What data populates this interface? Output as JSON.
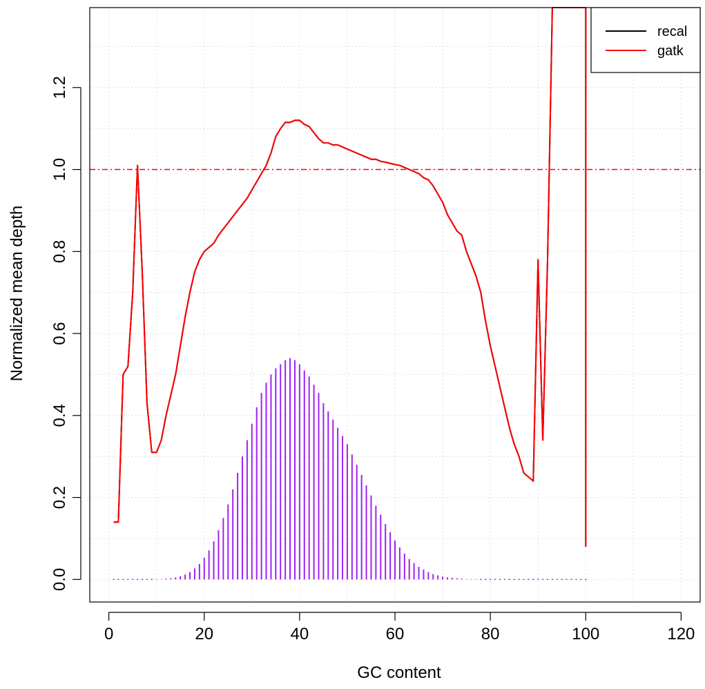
{
  "chart_data": {
    "type": "line",
    "xlabel": "GC content",
    "ylabel": "Normalized mean depth",
    "xlim": [
      -4,
      124
    ],
    "ylim": [
      -0.055,
      1.395
    ],
    "x_ticks": [
      0,
      20,
      40,
      60,
      80,
      100,
      120
    ],
    "y_ticks": [
      0.0,
      0.2,
      0.4,
      0.6,
      0.8,
      1.0,
      1.2
    ],
    "x_tick_labels": [
      "0",
      "20",
      "40",
      "60",
      "80",
      "100",
      "120"
    ],
    "y_tick_labels": [
      "0.0",
      "0.2",
      "0.4",
      "0.6",
      "0.8",
      "1.0",
      "1.2"
    ],
    "grid": true,
    "reference_line": {
      "y": 1.0,
      "color": "#ff0000",
      "style": "dashed"
    },
    "legend": {
      "position": "top-right",
      "entries": [
        {
          "label": "recal",
          "color": "#000000"
        },
        {
          "label": "gatk",
          "color": "#ff0000"
        }
      ]
    },
    "series": [
      {
        "name": "recal",
        "color": "#000000",
        "x": [
          1,
          2,
          3,
          4,
          5,
          6,
          7,
          8,
          9,
          10,
          11,
          12,
          13,
          14,
          15,
          16,
          17,
          18,
          19,
          20,
          21,
          22,
          23,
          24,
          25,
          26,
          27,
          28,
          29,
          30,
          31,
          32,
          33,
          34,
          35,
          36,
          37,
          38,
          39,
          40,
          41,
          42,
          43,
          44,
          45,
          46,
          47,
          48,
          49,
          50,
          51,
          52,
          53,
          54,
          55,
          56,
          57,
          58,
          59,
          60,
          61,
          62,
          63,
          64,
          65,
          66,
          67,
          68,
          69,
          70,
          71,
          72,
          73,
          74,
          75,
          76,
          77,
          78,
          79,
          80,
          81,
          82,
          83,
          84,
          85,
          86,
          87,
          88,
          89,
          90,
          91,
          92,
          93,
          100,
          100
        ],
        "y": [
          0.14,
          0.14,
          0.5,
          0.52,
          0.7,
          1.01,
          0.75,
          0.43,
          0.31,
          0.31,
          0.34,
          0.4,
          0.45,
          0.5,
          0.57,
          0.64,
          0.7,
          0.75,
          0.78,
          0.8,
          0.81,
          0.82,
          0.84,
          0.855,
          0.87,
          0.885,
          0.9,
          0.915,
          0.93,
          0.95,
          0.97,
          0.99,
          1.01,
          1.04,
          1.08,
          1.1,
          1.115,
          1.115,
          1.12,
          1.12,
          1.11,
          1.105,
          1.09,
          1.075,
          1.065,
          1.065,
          1.06,
          1.06,
          1.055,
          1.05,
          1.045,
          1.04,
          1.035,
          1.03,
          1.025,
          1.025,
          1.02,
          1.018,
          1.015,
          1.012,
          1.01,
          1.005,
          1.0,
          0.995,
          0.99,
          0.98,
          0.975,
          0.96,
          0.94,
          0.92,
          0.89,
          0.87,
          0.85,
          0.84,
          0.8,
          0.77,
          0.74,
          0.7,
          0.63,
          0.57,
          0.52,
          0.47,
          0.42,
          0.37,
          0.33,
          0.3,
          0.26,
          0.25,
          0.24,
          0.78,
          0.34,
          0.78,
          1.395,
          1.395,
          0.08
        ]
      },
      {
        "name": "gatk",
        "color": "#ff0000",
        "x": [
          1,
          2,
          3,
          4,
          5,
          6,
          7,
          8,
          9,
          10,
          11,
          12,
          13,
          14,
          15,
          16,
          17,
          18,
          19,
          20,
          21,
          22,
          23,
          24,
          25,
          26,
          27,
          28,
          29,
          30,
          31,
          32,
          33,
          34,
          35,
          36,
          37,
          38,
          39,
          40,
          41,
          42,
          43,
          44,
          45,
          46,
          47,
          48,
          49,
          50,
          51,
          52,
          53,
          54,
          55,
          56,
          57,
          58,
          59,
          60,
          61,
          62,
          63,
          64,
          65,
          66,
          67,
          68,
          69,
          70,
          71,
          72,
          73,
          74,
          75,
          76,
          77,
          78,
          79,
          80,
          81,
          82,
          83,
          84,
          85,
          86,
          87,
          88,
          89,
          90,
          91,
          92,
          93,
          100,
          100
        ],
        "y": [
          0.14,
          0.14,
          0.5,
          0.52,
          0.7,
          1.01,
          0.75,
          0.43,
          0.31,
          0.31,
          0.34,
          0.4,
          0.45,
          0.5,
          0.57,
          0.64,
          0.7,
          0.75,
          0.78,
          0.8,
          0.81,
          0.82,
          0.84,
          0.855,
          0.87,
          0.885,
          0.9,
          0.915,
          0.93,
          0.95,
          0.97,
          0.99,
          1.01,
          1.04,
          1.08,
          1.1,
          1.115,
          1.115,
          1.12,
          1.12,
          1.11,
          1.105,
          1.09,
          1.075,
          1.065,
          1.065,
          1.06,
          1.06,
          1.055,
          1.05,
          1.045,
          1.04,
          1.035,
          1.03,
          1.025,
          1.025,
          1.02,
          1.018,
          1.015,
          1.012,
          1.01,
          1.005,
          1.0,
          0.995,
          0.99,
          0.98,
          0.975,
          0.96,
          0.94,
          0.92,
          0.89,
          0.87,
          0.85,
          0.84,
          0.8,
          0.77,
          0.74,
          0.7,
          0.63,
          0.57,
          0.52,
          0.47,
          0.42,
          0.37,
          0.33,
          0.3,
          0.26,
          0.25,
          0.24,
          0.78,
          0.34,
          0.78,
          1.395,
          1.395,
          0.08
        ]
      }
    ],
    "histogram": {
      "color": "#a020f0",
      "x": [
        1,
        2,
        3,
        4,
        5,
        6,
        7,
        8,
        9,
        10,
        11,
        12,
        13,
        14,
        15,
        16,
        17,
        18,
        19,
        20,
        21,
        22,
        23,
        24,
        25,
        26,
        27,
        28,
        29,
        30,
        31,
        32,
        33,
        34,
        35,
        36,
        37,
        38,
        39,
        40,
        41,
        42,
        43,
        44,
        45,
        46,
        47,
        48,
        49,
        50,
        51,
        52,
        53,
        54,
        55,
        56,
        57,
        58,
        59,
        60,
        61,
        62,
        63,
        64,
        65,
        66,
        67,
        68,
        69,
        70,
        71,
        72,
        73,
        74,
        75,
        76,
        77,
        78,
        79,
        80,
        81,
        82,
        83,
        84,
        85,
        86,
        87,
        88,
        89,
        90,
        91,
        92,
        93,
        94,
        95,
        96,
        97,
        98,
        99,
        100
      ],
      "y": [
        0.0,
        0.0,
        0.0,
        0.0,
        0.0,
        0.0,
        0.0,
        0.0,
        0.0,
        0.001,
        0.001,
        0.002,
        0.003,
        0.005,
        0.008,
        0.012,
        0.018,
        0.027,
        0.038,
        0.053,
        0.071,
        0.093,
        0.12,
        0.15,
        0.183,
        0.22,
        0.26,
        0.3,
        0.34,
        0.38,
        0.42,
        0.455,
        0.48,
        0.5,
        0.515,
        0.525,
        0.535,
        0.54,
        0.535,
        0.525,
        0.51,
        0.495,
        0.475,
        0.455,
        0.43,
        0.41,
        0.39,
        0.37,
        0.35,
        0.33,
        0.305,
        0.28,
        0.255,
        0.23,
        0.205,
        0.18,
        0.158,
        0.135,
        0.115,
        0.095,
        0.078,
        0.063,
        0.05,
        0.04,
        0.031,
        0.024,
        0.018,
        0.013,
        0.01,
        0.007,
        0.005,
        0.004,
        0.003,
        0.002,
        0.001,
        0.001,
        0.001,
        0.0,
        0.0,
        0.0,
        0.0,
        0.0,
        0.0,
        0.0,
        0.0,
        0.0,
        0.0,
        0.0,
        0.0,
        0.0,
        0.0,
        0.0,
        0.0,
        0.0,
        0.0,
        0.0,
        0.0,
        0.0,
        0.0,
        0.0
      ]
    }
  }
}
